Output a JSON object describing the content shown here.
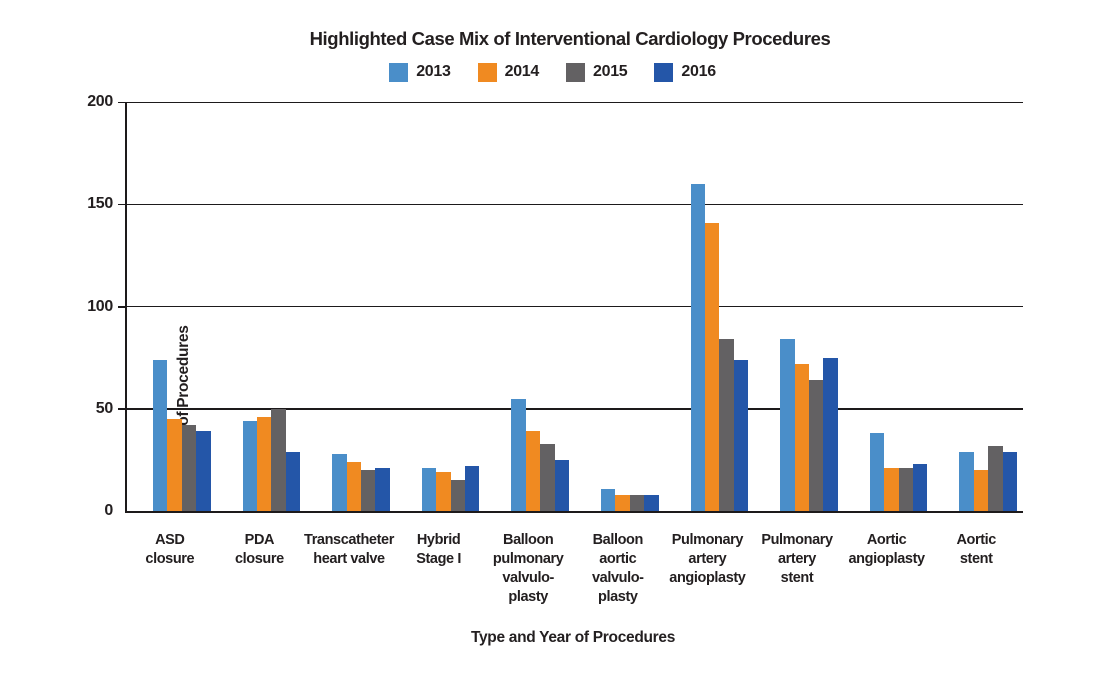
{
  "chart_data": {
    "type": "bar",
    "title": "Highlighted Case Mix of Interventional Cardiology Procedures",
    "xlabel": "Type and Year of Procedures",
    "ylabel": "Number of Procedures",
    "ylim": [
      0,
      200
    ],
    "yticks": [
      0,
      50,
      100,
      150,
      200
    ],
    "grid": true,
    "legend_position": "top-center",
    "background_color": "#ffffff",
    "axis_color": "#1d1a1b",
    "text_color": "#231f20",
    "categories": [
      "ASD closure",
      "PDA closure",
      "Transcatheter heart valve",
      "Hybrid Stage I",
      "Balloon pulmonary valvulo-plasty",
      "Balloon aortic valvulo-plasty",
      "Pulmonary artery angioplasty",
      "Pulmonary artery stent",
      "Aortic angioplasty",
      "Aortic stent"
    ],
    "category_lines": [
      [
        "ASD",
        "closure"
      ],
      [
        "PDA",
        "closure"
      ],
      [
        "Transcatheter",
        "heart valve"
      ],
      [
        "Hybrid",
        "Stage I"
      ],
      [
        "Balloon",
        "pulmonary",
        "valvulo-",
        "plasty"
      ],
      [
        "Balloon",
        "aortic",
        "valvulo-",
        "plasty"
      ],
      [
        "Pulmonary",
        "artery",
        "angioplasty"
      ],
      [
        "Pulmonary",
        "artery",
        "stent"
      ],
      [
        "Aortic",
        "angioplasty"
      ],
      [
        "Aortic",
        "stent"
      ]
    ],
    "series": [
      {
        "name": "2013",
        "color": "#4a8ec9",
        "values": [
          74,
          44,
          28,
          21,
          55,
          11,
          160,
          84,
          38,
          29
        ]
      },
      {
        "name": "2014",
        "color": "#f08a21",
        "values": [
          45,
          46,
          24,
          19,
          39,
          8,
          141,
          72,
          21,
          20
        ]
      },
      {
        "name": "2015",
        "color": "#636163",
        "values": [
          42,
          50,
          20,
          15,
          33,
          8,
          84,
          64,
          21,
          32
        ]
      },
      {
        "name": "2016",
        "color": "#2456a8",
        "values": [
          39,
          29,
          21,
          22,
          25,
          8,
          74,
          75,
          23,
          29
        ]
      }
    ]
  }
}
